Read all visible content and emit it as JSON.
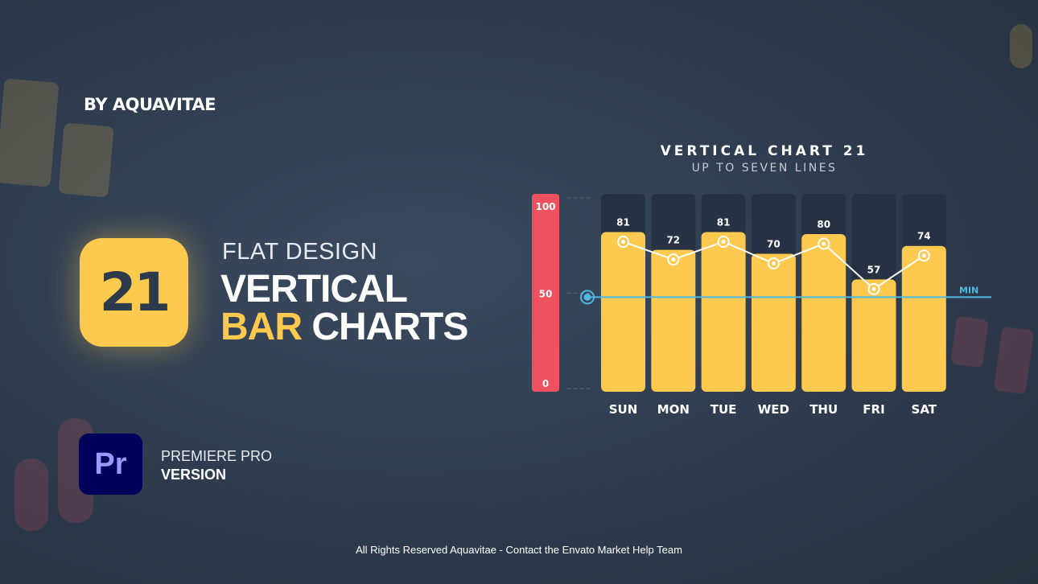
{
  "brand": {
    "by_line": "BY AQUAVITAE"
  },
  "hero": {
    "badge_number": "21",
    "subtitle": "FLAT DESIGN",
    "title_line1": "VERTICAL",
    "title_line2_accent": "BAR",
    "title_line2_rest": "CHARTS"
  },
  "software": {
    "icon_label": "Pr",
    "line1": "PREMIERE PRO",
    "line2": "VERSION"
  },
  "footer": "All Rights Reserved Aquavitae - Contact the Envato Market Help Team",
  "colors": {
    "background": "#2e3b4e",
    "bar": "#fdc94f",
    "axis_bar": "#ee5261",
    "min_line": "#4fb8e0",
    "column_bg": "#263244",
    "premiere": "#00005b"
  },
  "chart_data": {
    "type": "bar",
    "title": "VERTICAL CHART 21",
    "subtitle": "UP TO SEVEN LINES",
    "categories": [
      "SUN",
      "MON",
      "TUE",
      "WED",
      "THU",
      "FRI",
      "SAT"
    ],
    "values": [
      81,
      72,
      81,
      70,
      80,
      57,
      74
    ],
    "overlay_line": true,
    "ylim": [
      0,
      100
    ],
    "yticks": [
      "0",
      "50",
      "100"
    ],
    "min_line": {
      "label": "MIN",
      "value": 48
    }
  }
}
